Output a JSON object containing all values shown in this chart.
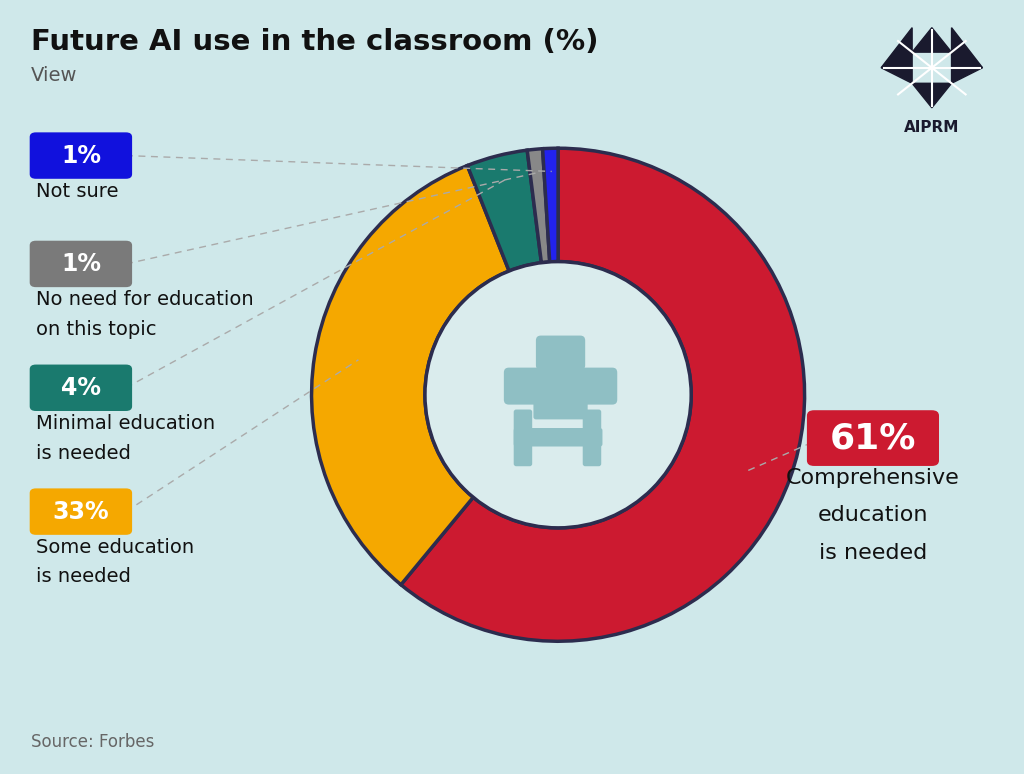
{
  "title": "Future AI use in the classroom (%)",
  "subtitle": "View",
  "source": "Source: Forbes",
  "background_color": "#cfe8ea",
  "segments": [
    {
      "label": "Comprehensive\neducation\nis needed",
      "pct": 61,
      "color": "#cc1a30",
      "badge_color": "#cc1a30",
      "text_color": "#ffffff"
    },
    {
      "label": "Some education\nis needed",
      "pct": 33,
      "color": "#f5a800",
      "badge_color": "#f5a800",
      "text_color": "#ffffff"
    },
    {
      "label": "Minimal education\nis needed",
      "pct": 4,
      "color": "#1a7a6e",
      "badge_color": "#1a7a6e",
      "text_color": "#ffffff"
    },
    {
      "label": "No need for education\non this topic",
      "pct": 1,
      "color": "#888888",
      "badge_color": "#7a7a7a",
      "text_color": "#ffffff"
    },
    {
      "label": "Not sure",
      "pct": 1,
      "color": "#2222ee",
      "badge_color": "#1111dd",
      "text_color": "#ffffff"
    }
  ],
  "donut_hole_color": "#daeced",
  "ring_edge_color": "#2c2c4e",
  "ring_edge_width": 2.5,
  "center_icon_color": "#8fbfc4",
  "title_fontsize": 21,
  "subtitle_fontsize": 14,
  "badge_fontsize": 17,
  "label_fontsize": 14,
  "source_fontsize": 12
}
